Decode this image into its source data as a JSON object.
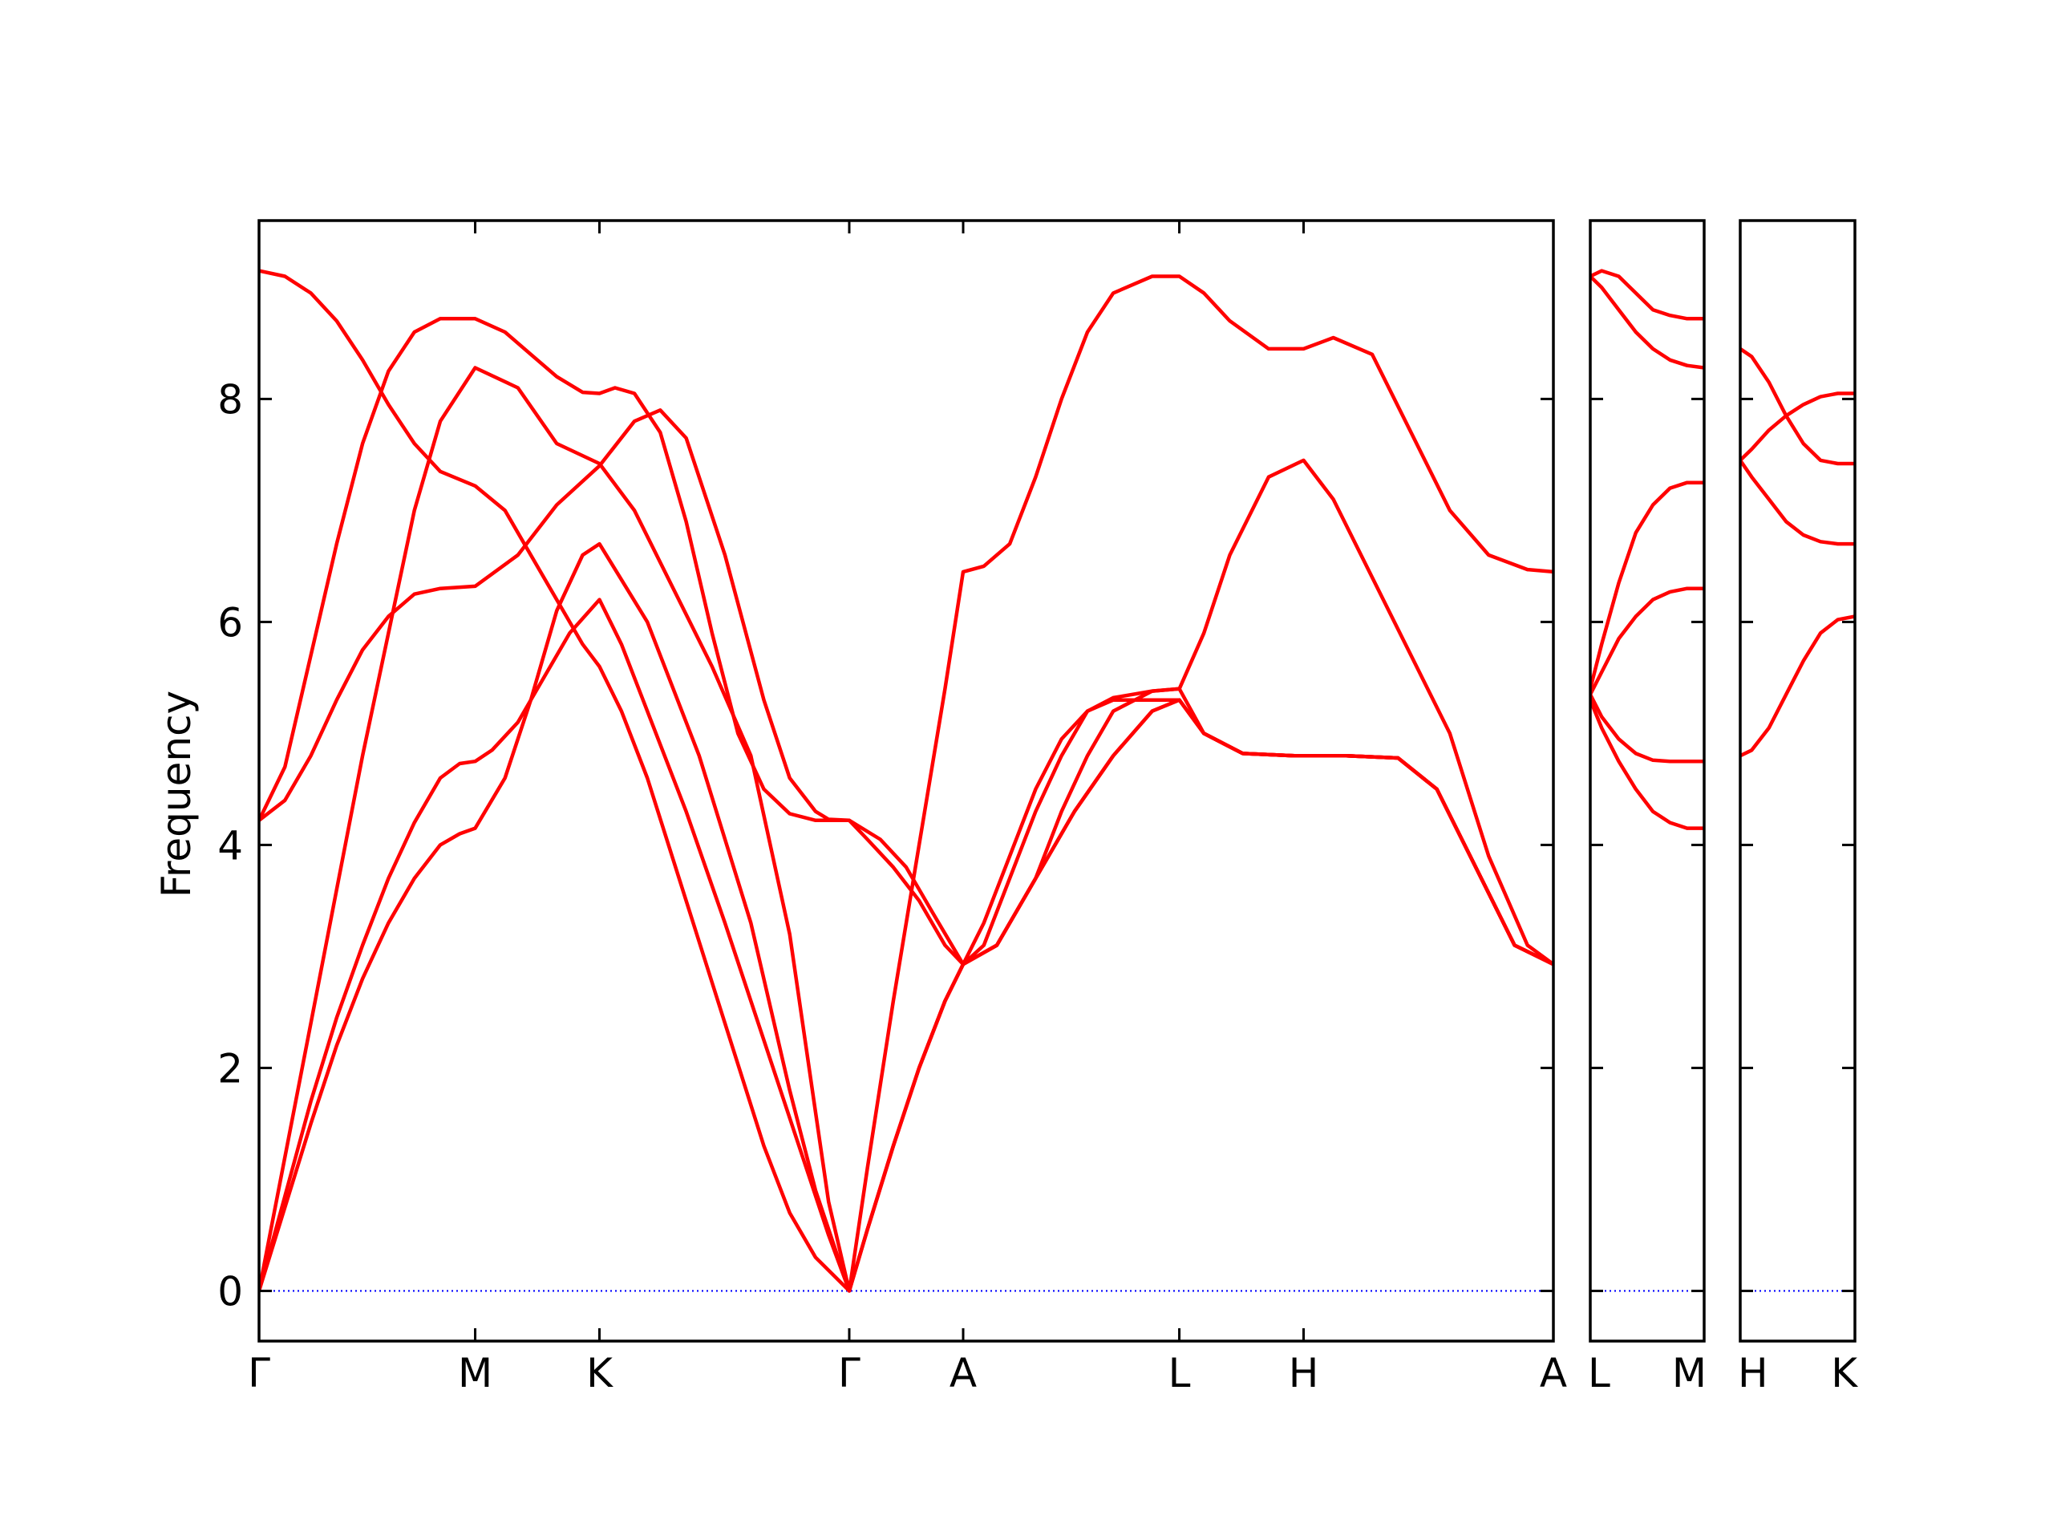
{
  "chart_data": {
    "type": "line",
    "title": "",
    "ylabel": "Frequency",
    "ylim": [
      -0.45,
      9.6
    ],
    "yticks": [
      0,
      2,
      4,
      6,
      8
    ],
    "grid": false,
    "legend": "none",
    "colors": {
      "bands": "#ff0000",
      "zero_line": "#0000ff",
      "axes": "#000000"
    },
    "panels": [
      {
        "name": "panel-1",
        "xlim": [
          0,
          1
        ],
        "xticks": [
          {
            "x": 0.0,
            "label": "Γ"
          },
          {
            "x": 0.167,
            "label": "M"
          },
          {
            "x": 0.263,
            "label": "K"
          },
          {
            "x": 0.456,
            "label": "Γ"
          },
          {
            "x": 0.544,
            "label": "A"
          },
          {
            "x": 0.711,
            "label": "L"
          },
          {
            "x": 0.807,
            "label": "H"
          },
          {
            "x": 1.0,
            "label": "A"
          }
        ],
        "series": [
          {
            "x": [
              0,
              0.02,
              0.04,
              0.06,
              0.08,
              0.1,
              0.12,
              0.14,
              0.155,
              0.167,
              0.19,
              0.21,
              0.23,
              0.25,
              0.263,
              0.3,
              0.34,
              0.38,
              0.41,
              0.43,
              0.456,
              0.47,
              0.49,
              0.51,
              0.53,
              0.544,
              0.57,
              0.6,
              0.63,
              0.66,
              0.69,
              0.711,
              0.73,
              0.76,
              0.8,
              0.807,
              0.84,
              0.88,
              0.91,
              0.94,
              0.97,
              1.0
            ],
            "y": [
              0,
              0.75,
              1.5,
              2.2,
              2.8,
              3.3,
              3.7,
              4.0,
              4.1,
              4.15,
              4.6,
              5.3,
              6.1,
              6.6,
              6.7,
              6.0,
              4.8,
              3.3,
              1.8,
              0.9,
              0,
              0.55,
              1.3,
              2.0,
              2.6,
              2.93,
              3.1,
              3.7,
              4.3,
              4.8,
              5.2,
              5.3,
              5.0,
              4.82,
              4.8,
              4.8,
              4.8,
              4.78,
              4.5,
              3.8,
              3.1,
              2.93
            ]
          },
          {
            "x": [
              0,
              0.02,
              0.04,
              0.06,
              0.08,
              0.1,
              0.12,
              0.14,
              0.155,
              0.167,
              0.18,
              0.2,
              0.22,
              0.24,
              0.263,
              0.28,
              0.3,
              0.33,
              0.36,
              0.38,
              0.4,
              0.42,
              0.44,
              0.456,
              0.47,
              0.49,
              0.51,
              0.53,
              0.544,
              0.56,
              0.58,
              0.6,
              0.62,
              0.64,
              0.66,
              0.69,
              0.711,
              0.73,
              0.75,
              0.78,
              0.807,
              0.83,
              0.86,
              0.89,
              0.92,
              0.95,
              0.98,
              1.0
            ],
            "y": [
              0,
              0.85,
              1.7,
              2.45,
              3.1,
              3.7,
              4.2,
              4.6,
              4.73,
              4.75,
              4.85,
              5.1,
              5.5,
              5.9,
              6.2,
              5.8,
              5.2,
              4.3,
              3.3,
              2.6,
              1.9,
              1.2,
              0.5,
              0,
              0.55,
              1.3,
              2.0,
              2.6,
              2.93,
              3.3,
              3.9,
              4.5,
              4.95,
              5.2,
              5.32,
              5.38,
              5.4,
              5.9,
              6.6,
              7.3,
              7.45,
              7.1,
              6.4,
              5.7,
              5.0,
              3.9,
              3.1,
              2.93
            ]
          },
          {
            "x": [
              0,
              0.02,
              0.04,
              0.06,
              0.08,
              0.1,
              0.12,
              0.14,
              0.167,
              0.2,
              0.23,
              0.263,
              0.29,
              0.31,
              0.33,
              0.36,
              0.39,
              0.41,
              0.43,
              0.44,
              0.456,
              0.47,
              0.49,
              0.51,
              0.53,
              0.544,
              0.56,
              0.58,
              0.6,
              0.62,
              0.64,
              0.66,
              0.69,
              0.711,
              0.73,
              0.76,
              0.8,
              0.807,
              0.84,
              0.88,
              0.91,
              0.94,
              0.97,
              1.0
            ],
            "y": [
              4.22,
              4.4,
              4.8,
              5.3,
              5.75,
              6.05,
              6.25,
              6.3,
              6.32,
              6.6,
              7.05,
              7.4,
              7.8,
              7.9,
              7.65,
              6.6,
              5.3,
              4.6,
              4.3,
              4.23,
              4.22,
              4.05,
              3.8,
              3.5,
              3.1,
              2.93,
              3.1,
              3.7,
              4.3,
              4.8,
              5.2,
              5.3,
              5.3,
              5.3,
              5.0,
              4.82,
              4.8,
              4.8,
              4.8,
              4.78,
              4.5,
              3.8,
              3.1,
              2.93
            ]
          },
          {
            "x": [
              0,
              0.02,
              0.04,
              0.06,
              0.08,
              0.1,
              0.12,
              0.14,
              0.167,
              0.2,
              0.23,
              0.263,
              0.29,
              0.32,
              0.35,
              0.38,
              0.41,
              0.43,
              0.44,
              0.456,
              0.47,
              0.49,
              0.51,
              0.53,
              0.544,
              0.56,
              0.58,
              0.6,
              0.62,
              0.64,
              0.66,
              0.69,
              0.711,
              0.73,
              0.75,
              0.78,
              0.807,
              0.83,
              0.86,
              0.89,
              0.92,
              0.95,
              0.98,
              1.0
            ],
            "y": [
              0,
              1.2,
              2.4,
              3.6,
              4.8,
              5.9,
              7.0,
              7.8,
              8.28,
              8.1,
              7.6,
              7.42,
              7.0,
              6.3,
              5.6,
              4.8,
              3.2,
              1.6,
              0.8,
              0,
              1.1,
              2.6,
              4.0,
              5.4,
              6.45,
              6.5,
              6.7,
              7.3,
              8.0,
              8.6,
              8.95,
              9.1,
              9.1,
              8.95,
              8.7,
              8.45,
              8.45,
              8.55,
              8.4,
              7.7,
              7.0,
              6.6,
              6.47,
              6.45
            ]
          },
          {
            "x": [
              0,
              0.02,
              0.04,
              0.06,
              0.08,
              0.1,
              0.12,
              0.14,
              0.167,
              0.19,
              0.21,
              0.23,
              0.25,
              0.263,
              0.275,
              0.29,
              0.31,
              0.33,
              0.35,
              0.37,
              0.39,
              0.41,
              0.43,
              0.456,
              0.48,
              0.5,
              0.52,
              0.544,
              0.57,
              0.6,
              0.62,
              0.64,
              0.66,
              0.69,
              0.711,
              0.73,
              0.76,
              0.8,
              0.807,
              0.84,
              0.88,
              0.91,
              0.94,
              0.97,
              1.0
            ],
            "y": [
              4.22,
              4.7,
              5.7,
              6.7,
              7.6,
              8.25,
              8.6,
              8.72,
              8.72,
              8.6,
              8.4,
              8.2,
              8.06,
              8.05,
              8.1,
              8.05,
              7.7,
              6.9,
              5.9,
              5.0,
              4.5,
              4.28,
              4.22,
              4.22,
              4.05,
              3.8,
              3.4,
              2.93,
              3.1,
              3.7,
              4.3,
              4.8,
              5.2,
              5.38,
              5.4,
              5.0,
              4.82,
              4.8,
              4.8,
              4.8,
              4.78,
              4.5,
              3.8,
              3.1,
              2.93
            ]
          },
          {
            "x": [
              0,
              0.02,
              0.04,
              0.06,
              0.08,
              0.1,
              0.12,
              0.14,
              0.167,
              0.19,
              0.21,
              0.23,
              0.25,
              0.263,
              0.28,
              0.3,
              0.33,
              0.36,
              0.39,
              0.41,
              0.43,
              0.456,
              0.47,
              0.49,
              0.51,
              0.53,
              0.544,
              0.57,
              0.6,
              0.63,
              0.66,
              0.69,
              0.711,
              0.73,
              0.76,
              0.8,
              0.807,
              0.84,
              0.88,
              0.91,
              0.94,
              0.97,
              1.0
            ],
            "y": [
              9.15,
              9.1,
              8.95,
              8.7,
              8.35,
              7.95,
              7.6,
              7.35,
              7.22,
              7.0,
              6.6,
              6.2,
              5.8,
              5.6,
              5.2,
              4.6,
              3.5,
              2.4,
              1.3,
              0.7,
              0.3,
              0,
              0.55,
              1.3,
              2.0,
              2.6,
              2.93,
              3.1,
              3.7,
              4.3,
              4.8,
              5.2,
              5.3,
              5.0,
              4.82,
              4.8,
              4.8,
              4.8,
              4.78,
              4.5,
              3.8,
              3.1,
              2.93
            ]
          }
        ]
      },
      {
        "name": "panel-2",
        "xlim": [
          0,
          1
        ],
        "xticks": [
          {
            "x": 0.0,
            "label": "L"
          },
          {
            "x": 1.0,
            "label": "M"
          }
        ],
        "series": [
          {
            "x": [
              0,
              0.1,
              0.25,
              0.4,
              0.55,
              0.7,
              0.85,
              1.0
            ],
            "y": [
              9.1,
              9.15,
              9.1,
              8.95,
              8.8,
              8.75,
              8.72,
              8.72
            ]
          },
          {
            "x": [
              0,
              0.1,
              0.25,
              0.4,
              0.55,
              0.7,
              0.85,
              1.0
            ],
            "y": [
              9.1,
              9.0,
              8.8,
              8.6,
              8.45,
              8.35,
              8.3,
              8.28
            ]
          },
          {
            "x": [
              0,
              0.1,
              0.25,
              0.4,
              0.55,
              0.7,
              0.85,
              1.0
            ],
            "y": [
              5.4,
              5.8,
              6.35,
              6.8,
              7.05,
              7.2,
              7.25,
              7.25
            ]
          },
          {
            "x": [
              0,
              0.1,
              0.25,
              0.4,
              0.55,
              0.7,
              0.85,
              1.0
            ],
            "y": [
              5.35,
              5.55,
              5.85,
              6.05,
              6.2,
              6.27,
              6.3,
              6.3
            ]
          },
          {
            "x": [
              0,
              0.1,
              0.25,
              0.4,
              0.55,
              0.7,
              0.85,
              1.0
            ],
            "y": [
              5.35,
              5.15,
              4.95,
              4.82,
              4.76,
              4.75,
              4.75,
              4.75
            ]
          },
          {
            "x": [
              0,
              0.1,
              0.25,
              0.4,
              0.55,
              0.7,
              0.85,
              1.0
            ],
            "y": [
              5.3,
              5.05,
              4.75,
              4.5,
              4.3,
              4.2,
              4.15,
              4.15
            ]
          }
        ]
      },
      {
        "name": "panel-3",
        "xlim": [
          0,
          1
        ],
        "xticks": [
          {
            "x": 0.0,
            "label": "H"
          },
          {
            "x": 1.0,
            "label": "K"
          }
        ],
        "series": [
          {
            "x": [
              0,
              0.1,
              0.25,
              0.4,
              0.55,
              0.7,
              0.85,
              1.0
            ],
            "y": [
              8.45,
              8.38,
              8.15,
              7.85,
              7.6,
              7.45,
              7.42,
              7.42
            ]
          },
          {
            "x": [
              0,
              0.1,
              0.25,
              0.4,
              0.55,
              0.7,
              0.85,
              1.0
            ],
            "y": [
              7.45,
              7.55,
              7.72,
              7.85,
              7.95,
              8.02,
              8.05,
              8.05
            ]
          },
          {
            "x": [
              0,
              0.1,
              0.25,
              0.4,
              0.55,
              0.7,
              0.85,
              1.0
            ],
            "y": [
              7.45,
              7.3,
              7.1,
              6.9,
              6.78,
              6.72,
              6.7,
              6.7
            ]
          },
          {
            "x": [
              0,
              0.1,
              0.25,
              0.4,
              0.55,
              0.7,
              0.85,
              1.0
            ],
            "y": [
              4.8,
              4.85,
              5.05,
              5.35,
              5.65,
              5.9,
              6.02,
              6.05
            ]
          }
        ]
      }
    ]
  }
}
